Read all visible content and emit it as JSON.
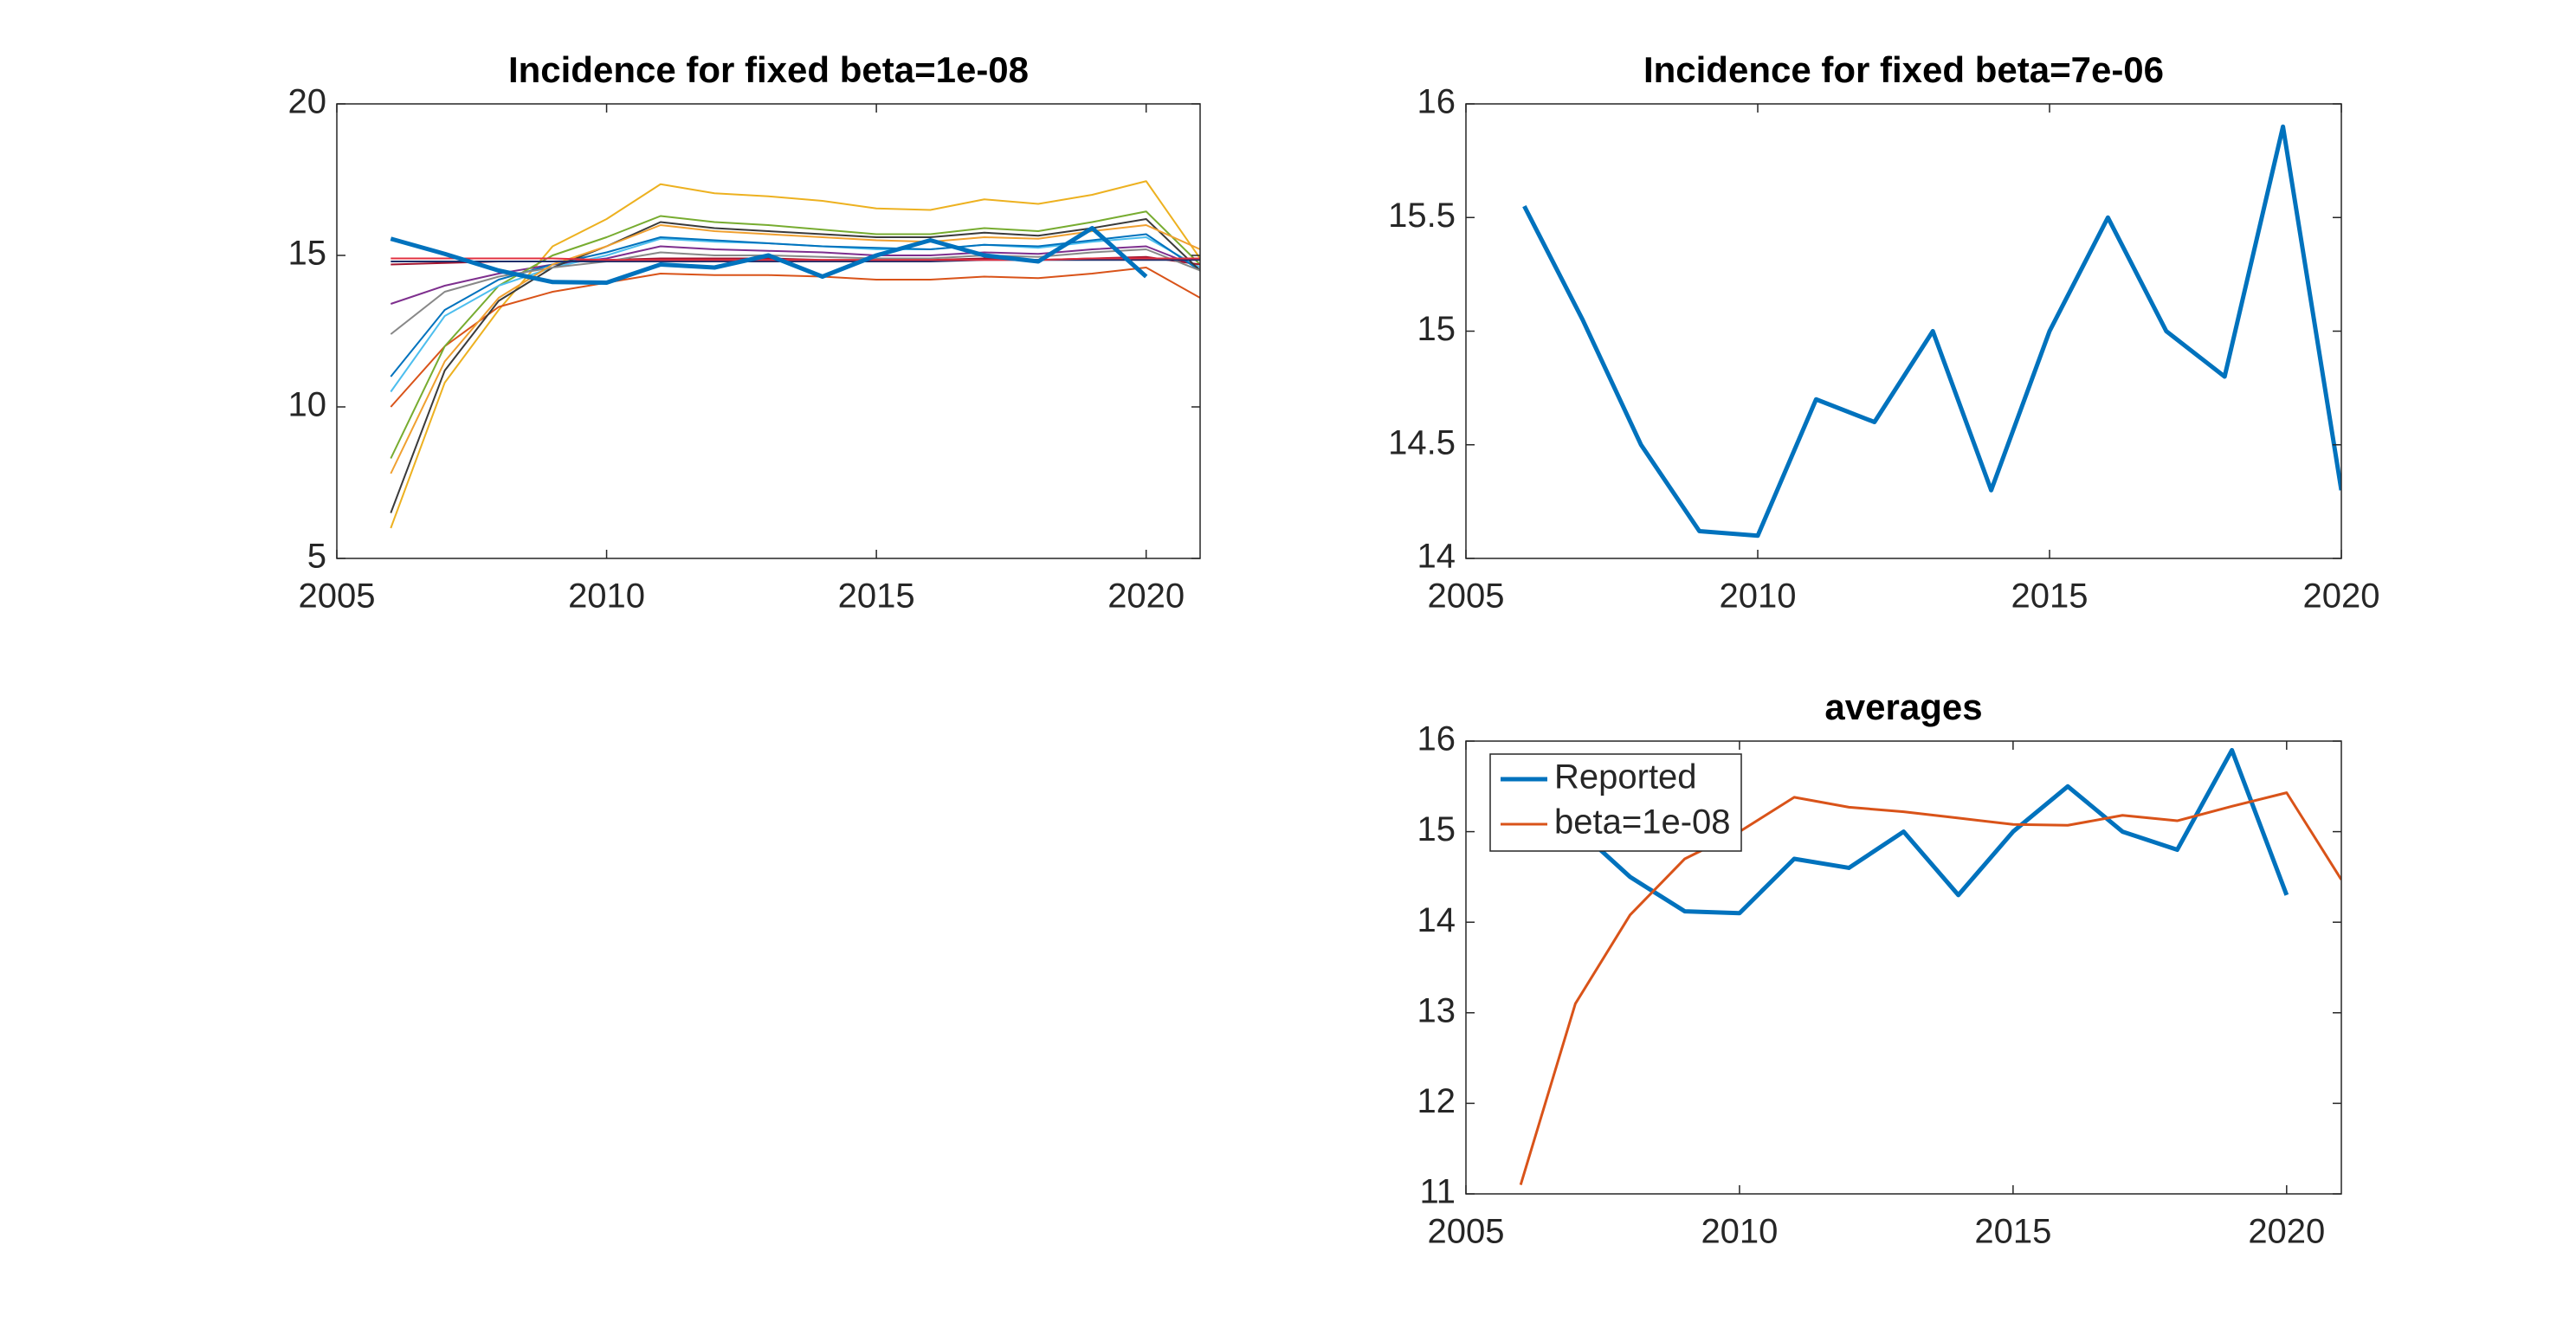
{
  "chart_data": [
    {
      "type": "line",
      "title": "Incidence for fixed beta=1e-08",
      "x": [
        2006,
        2007,
        2008,
        2009,
        2010,
        2011,
        2012,
        2013,
        2014,
        2015,
        2016,
        2017,
        2018,
        2019,
        2020,
        2021
      ],
      "xlim": [
        2005,
        2021
      ],
      "xticks": [
        2005,
        2010,
        2015,
        2020
      ],
      "ylim": [
        5,
        20
      ],
      "yticks": [
        5,
        10,
        15,
        20
      ],
      "series": [
        {
          "color": "#EDB120",
          "line_width": 1,
          "values": [
            6.0,
            10.8,
            13.2,
            15.3,
            16.2,
            17.35,
            17.05,
            16.95,
            16.8,
            16.55,
            16.5,
            16.85,
            16.7,
            17.0,
            17.45,
            14.9
          ]
        },
        {
          "color": "#D95319",
          "line_width": 1,
          "values": [
            10.0,
            12.0,
            13.3,
            13.8,
            14.1,
            14.4,
            14.35,
            14.35,
            14.3,
            14.2,
            14.2,
            14.3,
            14.25,
            14.4,
            14.6,
            13.6
          ]
        },
        {
          "color": "#7E2F8E",
          "line_width": 1,
          "values": [
            13.4,
            14.0,
            14.4,
            14.7,
            14.9,
            15.3,
            15.2,
            15.15,
            15.1,
            15.0,
            15.0,
            15.1,
            15.05,
            15.2,
            15.3,
            14.6
          ]
        },
        {
          "color": "#77AC30",
          "line_width": 1,
          "values": [
            8.3,
            12.0,
            14.0,
            15.0,
            15.6,
            16.3,
            16.1,
            16.0,
            15.85,
            15.7,
            15.7,
            15.9,
            15.8,
            16.1,
            16.45,
            14.7
          ]
        },
        {
          "color": "#4DBEEE",
          "line_width": 1,
          "values": [
            10.5,
            13.0,
            14.0,
            14.6,
            15.0,
            15.55,
            15.45,
            15.4,
            15.3,
            15.2,
            15.2,
            15.35,
            15.25,
            15.45,
            15.6,
            14.6
          ]
        },
        {
          "color": "#A2142F",
          "line_width": 1,
          "values": [
            14.7,
            14.75,
            14.8,
            14.8,
            14.85,
            14.9,
            14.9,
            14.9,
            14.85,
            14.85,
            14.85,
            14.9,
            14.85,
            14.9,
            14.95,
            14.7
          ]
        },
        {
          "color": "#0072BD",
          "line_width": 1,
          "values": [
            11.0,
            13.2,
            14.2,
            14.7,
            15.1,
            15.6,
            15.5,
            15.4,
            15.3,
            15.25,
            15.2,
            15.35,
            15.3,
            15.5,
            15.7,
            14.5
          ]
        },
        {
          "color": "#3a3a3a",
          "line_width": 1,
          "values": [
            6.5,
            11.2,
            13.5,
            14.6,
            15.3,
            16.1,
            15.9,
            15.8,
            15.7,
            15.6,
            15.6,
            15.75,
            15.65,
            15.9,
            16.2,
            14.5
          ]
        },
        {
          "color": "#888888",
          "line_width": 1,
          "values": [
            12.4,
            13.8,
            14.3,
            14.6,
            14.8,
            15.1,
            15.0,
            15.0,
            14.95,
            14.9,
            14.9,
            15.0,
            14.95,
            15.1,
            15.2,
            14.5
          ]
        },
        {
          "color": "#F0A030",
          "line_width": 1,
          "values": [
            7.8,
            11.5,
            13.6,
            14.7,
            15.3,
            16.0,
            15.8,
            15.7,
            15.6,
            15.5,
            15.45,
            15.6,
            15.55,
            15.8,
            16.0,
            15.2
          ]
        },
        {
          "color": "#1f2d6b",
          "line_width": 1,
          "values": [
            14.8,
            14.8,
            14.8,
            14.8,
            14.8,
            14.8,
            14.8,
            14.8,
            14.8,
            14.8,
            14.8,
            14.85,
            14.85,
            14.85,
            14.85,
            14.85
          ]
        },
        {
          "color": "#e03040",
          "line_width": 1,
          "values": [
            14.9,
            14.9,
            14.9,
            14.9,
            14.85,
            14.85,
            14.85,
            14.85,
            14.85,
            14.85,
            14.85,
            14.85,
            14.85,
            14.9,
            14.9,
            14.9
          ]
        },
        {
          "color": "#0072BD",
          "line_width": 2.5,
          "values": [
            15.55,
            15.05,
            14.5,
            14.12,
            14.1,
            14.7,
            14.6,
            15.0,
            14.3,
            15.0,
            15.5,
            15.0,
            14.8,
            15.9,
            14.3,
            null
          ]
        }
      ]
    },
    {
      "type": "line",
      "title": "Incidence for fixed beta=7e-06",
      "x": [
        2006,
        2007,
        2008,
        2009,
        2010,
        2011,
        2012,
        2013,
        2014,
        2015,
        2016,
        2017,
        2018,
        2019,
        2020
      ],
      "xlim": [
        2005,
        2020
      ],
      "xticks": [
        2005,
        2010,
        2015,
        2020
      ],
      "ylim": [
        14,
        16
      ],
      "yticks": [
        14,
        14.5,
        15,
        15.5,
        16
      ],
      "series": [
        {
          "color": "#0072BD",
          "line_width": 2.5,
          "values": [
            15.55,
            15.05,
            14.5,
            14.12,
            14.1,
            14.7,
            14.6,
            15.0,
            14.3,
            15.0,
            15.5,
            15.0,
            14.8,
            15.9,
            14.3
          ]
        }
      ]
    },
    {
      "type": "line",
      "title": "averages",
      "x": [
        2006,
        2007,
        2008,
        2009,
        2010,
        2011,
        2012,
        2013,
        2014,
        2015,
        2016,
        2017,
        2018,
        2019,
        2020,
        2021
      ],
      "xlim": [
        2005,
        2021
      ],
      "xticks": [
        2005,
        2010,
        2015,
        2020
      ],
      "ylim": [
        11,
        16
      ],
      "yticks": [
        11,
        12,
        13,
        14,
        15,
        16
      ],
      "legend": "top-left",
      "series": [
        {
          "name": "Reported",
          "color": "#0072BD",
          "line_width": 2.5,
          "values": [
            15.55,
            15.05,
            14.5,
            14.12,
            14.1,
            14.7,
            14.6,
            15.0,
            14.3,
            15.0,
            15.5,
            15.0,
            14.8,
            15.9,
            14.3,
            null
          ]
        },
        {
          "name": "beta=1e-08",
          "color": "#D95319",
          "line_width": 1.5,
          "values": [
            11.1,
            13.1,
            14.08,
            14.7,
            15.0,
            15.38,
            15.27,
            15.22,
            15.15,
            15.08,
            15.07,
            15.18,
            15.12,
            15.28,
            15.43,
            14.47
          ]
        }
      ]
    }
  ]
}
